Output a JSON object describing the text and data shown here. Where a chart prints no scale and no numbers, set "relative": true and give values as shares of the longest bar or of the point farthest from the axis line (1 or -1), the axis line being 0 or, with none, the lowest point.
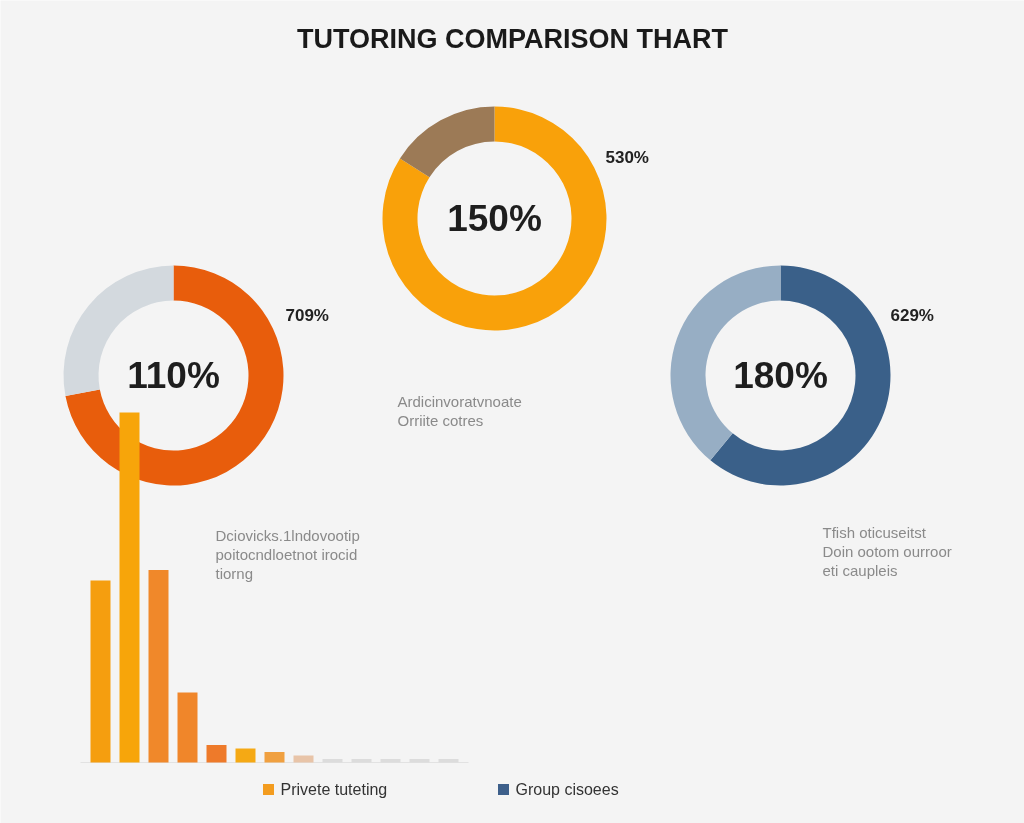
{
  "chart_data": [
    {
      "type": "other",
      "title": "TUTORING COMPARISON THART",
      "legend": "bottom",
      "series": [
        {
          "name": "Privete tuteting",
          "color": "#f39c1f"
        },
        {
          "name": "Group cisoees",
          "color": "#3d5f8a"
        }
      ]
    },
    {
      "type": "donut",
      "categories": [
        null,
        null
      ],
      "values": [
        84,
        16
      ],
      "colors": [
        "#f9a10a",
        "#9c7a56"
      ],
      "annotations": [
        "150%",
        "530%",
        "Ardicinvoratvnoate",
        "Orriite cotres"
      ]
    },
    {
      "type": "donut",
      "categories": [
        null,
        null
      ],
      "values": [
        72,
        28
      ],
      "colors": [
        "#e85d0c",
        "#d3d9de"
      ],
      "annotations": [
        "110%",
        "709%",
        "Dciovicks.1lndovootip",
        "poitocndloetnot irocid",
        "tiorng"
      ]
    },
    {
      "type": "donut",
      "categories": [
        null,
        null
      ],
      "values": [
        61,
        39
      ],
      "colors": [
        "#3a6089",
        "#97aec4"
      ],
      "annotations": [
        "180%",
        "629%",
        "Tfish oticuseitst",
        "Doin ootom ourroor",
        "eti caupleis"
      ]
    },
    {
      "type": "bar",
      "relative": true,
      "categories": [
        null,
        null,
        null,
        null,
        null,
        null,
        null,
        null,
        null,
        null,
        null,
        null,
        null
      ],
      "values": [
        0.52,
        1,
        0.55,
        0.2,
        0.05,
        0.04,
        0.03,
        0.02,
        0.01,
        0.01,
        0.01,
        0.01,
        0.01
      ],
      "colors": [
        "#f59e0f",
        "#f7a50a",
        "#f0882a",
        "#f0862a",
        "#ee7a2a",
        "#f5a914",
        "#f0a040",
        "#e8c4a8",
        "#dcdcdc",
        "#dcdcdc",
        "#dcdcdc",
        "#dcdcdc",
        "#dcdcdc"
      ]
    }
  ]
}
